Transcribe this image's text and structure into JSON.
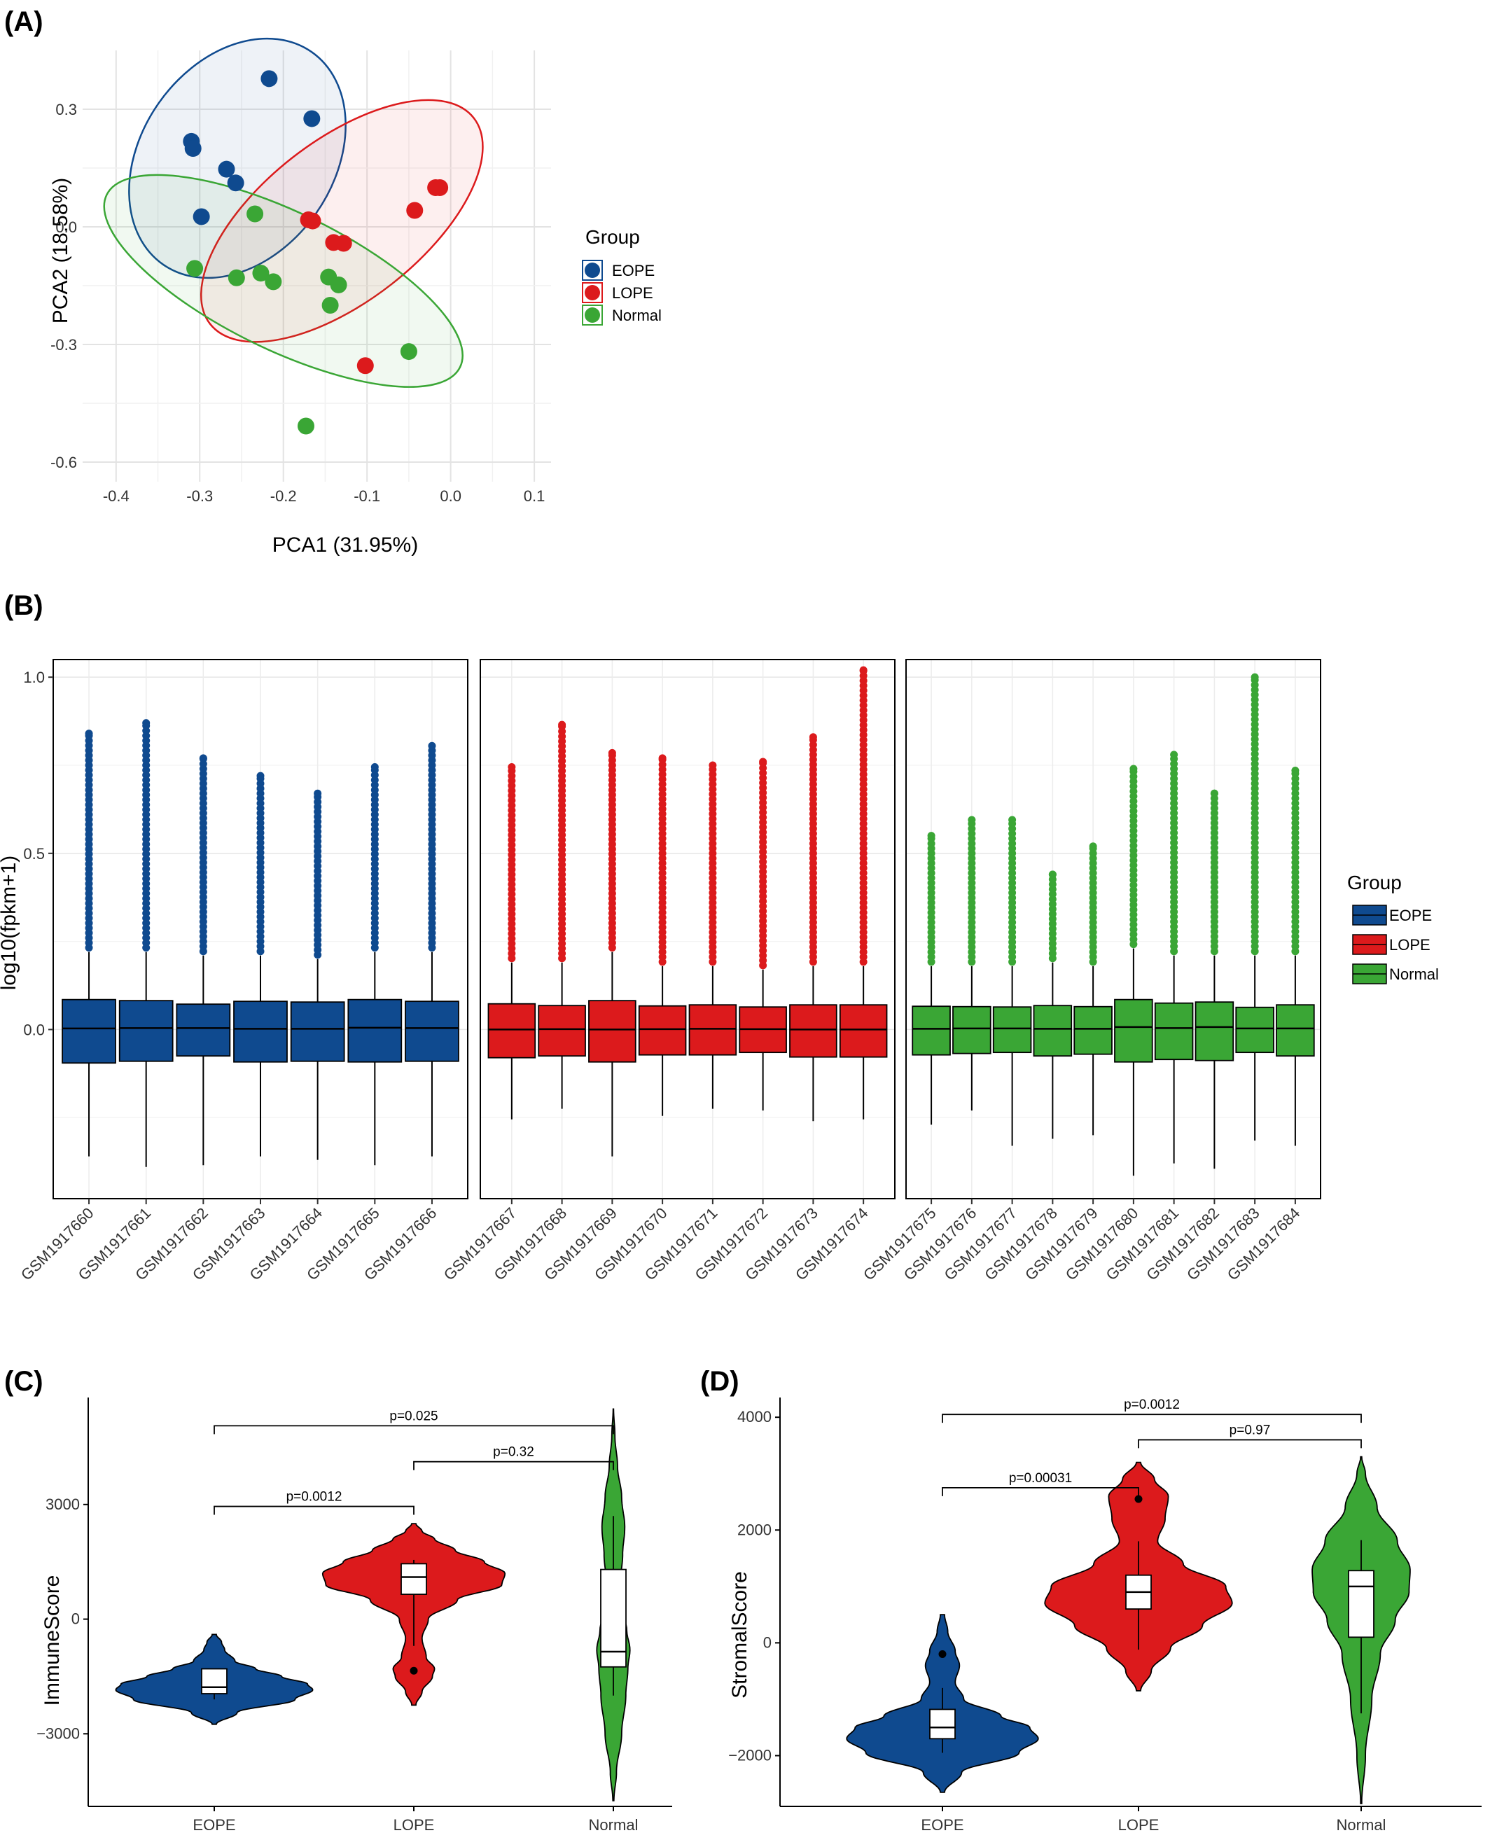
{
  "panels": {
    "a": "(A)",
    "b": "(B)",
    "c": "(C)",
    "d": "(D)"
  },
  "colors": {
    "EOPE": "#0f4a8f",
    "LOPE": "#dc1a1c",
    "Normal": "#3aa635"
  },
  "chart_data": [
    {
      "id": "A",
      "type": "scatter",
      "title": "",
      "xlabel": "PCA1 (31.95%)",
      "ylabel": "PCA2 (18.58%)",
      "xlim": [
        -0.44,
        0.12
      ],
      "ylim": [
        -0.65,
        0.45
      ],
      "xticks": [
        -0.4,
        -0.3,
        -0.2,
        -0.1,
        0.0,
        0.1
      ],
      "xtick_labels": [
        "-0.4",
        "-0.3",
        "-0.2",
        "-0.1",
        "0.0",
        "0.1"
      ],
      "yticks": [
        -0.6,
        -0.3,
        0.0,
        0.3
      ],
      "ytick_labels": [
        "-0.6",
        "-0.3",
        "0.0",
        "0.3"
      ],
      "grid": true,
      "legend": {
        "title": "Group",
        "position": "right",
        "entries": [
          "EOPE",
          "LOPE",
          "Normal"
        ]
      },
      "series": [
        {
          "name": "EOPE",
          "x": [
            -0.217,
            -0.166,
            -0.31,
            -0.308,
            -0.268,
            -0.257,
            -0.298
          ],
          "y": [
            0.378,
            0.276,
            0.218,
            0.2,
            0.147,
            0.112,
            0.026
          ]
        },
        {
          "name": "LOPE",
          "x": [
            -0.018,
            -0.013,
            -0.043,
            -0.17,
            -0.165,
            -0.14,
            -0.128,
            -0.102
          ],
          "y": [
            0.1,
            0.1,
            0.042,
            0.018,
            0.015,
            -0.04,
            -0.042,
            -0.354
          ]
        },
        {
          "name": "Normal",
          "x": [
            -0.234,
            -0.306,
            -0.256,
            -0.227,
            -0.212,
            -0.146,
            -0.134,
            -0.144,
            -0.05,
            -0.173
          ],
          "y": [
            0.033,
            -0.106,
            -0.13,
            -0.118,
            -0.14,
            -0.128,
            -0.148,
            -0.2,
            -0.318,
            -0.508
          ]
        }
      ],
      "ellipses": [
        {
          "group": "EOPE",
          "cx": -0.255,
          "cy": 0.175,
          "rx": 0.155,
          "ry": 0.245,
          "angle_deg": -55
        },
        {
          "group": "LOPE",
          "cx": -0.13,
          "cy": 0.015,
          "rx": 0.2,
          "ry": 0.205,
          "angle_deg": -38
        },
        {
          "group": "Normal",
          "cx": -0.2,
          "cy": -0.138,
          "rx": 0.235,
          "ry": 0.175,
          "angle_deg": 26
        }
      ]
    },
    {
      "id": "B",
      "type": "box",
      "title": "",
      "xlabel": "",
      "ylabel": "log10(fpkm+1)",
      "ylim": [
        -0.48,
        1.05
      ],
      "yticks": [
        0.0,
        0.5,
        1.0
      ],
      "ytick_labels": [
        "0.0",
        "0.5",
        "1.0"
      ],
      "grid": true,
      "legend": {
        "title": "Group",
        "position": "right",
        "entries": [
          "EOPE",
          "LOPE",
          "Normal"
        ]
      },
      "facets": [
        {
          "group": "EOPE",
          "samples": [
            {
              "label": "GSM1917660",
              "q1": -0.095,
              "median": 0.003,
              "q3": 0.085,
              "whisker_low": -0.36,
              "whisker_high": 0.22,
              "outlier_max": 0.84
            },
            {
              "label": "GSM1917661",
              "q1": -0.09,
              "median": 0.004,
              "q3": 0.082,
              "whisker_low": -0.39,
              "whisker_high": 0.22,
              "outlier_max": 0.87
            },
            {
              "label": "GSM1917662",
              "q1": -0.075,
              "median": 0.004,
              "q3": 0.072,
              "whisker_low": -0.385,
              "whisker_high": 0.21,
              "outlier_max": 0.77
            },
            {
              "label": "GSM1917663",
              "q1": -0.092,
              "median": 0.002,
              "q3": 0.08,
              "whisker_low": -0.36,
              "whisker_high": 0.21,
              "outlier_max": 0.72
            },
            {
              "label": "GSM1917664",
              "q1": -0.09,
              "median": 0.002,
              "q3": 0.078,
              "whisker_low": -0.37,
              "whisker_high": 0.2,
              "outlier_max": 0.67
            },
            {
              "label": "GSM1917665",
              "q1": -0.092,
              "median": 0.005,
              "q3": 0.085,
              "whisker_low": -0.385,
              "whisker_high": 0.22,
              "outlier_max": 0.745
            },
            {
              "label": "GSM1917666",
              "q1": -0.09,
              "median": 0.004,
              "q3": 0.08,
              "whisker_low": -0.36,
              "whisker_high": 0.22,
              "outlier_max": 0.805
            }
          ]
        },
        {
          "group": "LOPE",
          "samples": [
            {
              "label": "GSM1917667",
              "q1": -0.08,
              "median": 0.0,
              "q3": 0.073,
              "whisker_low": -0.255,
              "whisker_high": 0.19,
              "outlier_max": 0.745
            },
            {
              "label": "GSM1917668",
              "q1": -0.075,
              "median": 0.001,
              "q3": 0.068,
              "whisker_low": -0.225,
              "whisker_high": 0.19,
              "outlier_max": 0.865
            },
            {
              "label": "GSM1917669",
              "q1": -0.092,
              "median": 0.0,
              "q3": 0.082,
              "whisker_low": -0.36,
              "whisker_high": 0.22,
              "outlier_max": 0.785
            },
            {
              "label": "GSM1917670",
              "q1": -0.072,
              "median": 0.001,
              "q3": 0.067,
              "whisker_low": -0.245,
              "whisker_high": 0.18,
              "outlier_max": 0.77
            },
            {
              "label": "GSM1917671",
              "q1": -0.072,
              "median": 0.002,
              "q3": 0.07,
              "whisker_low": -0.225,
              "whisker_high": 0.18,
              "outlier_max": 0.75
            },
            {
              "label": "GSM1917672",
              "q1": -0.065,
              "median": 0.001,
              "q3": 0.064,
              "whisker_low": -0.23,
              "whisker_high": 0.17,
              "outlier_max": 0.76
            },
            {
              "label": "GSM1917673",
              "q1": -0.078,
              "median": 0.0,
              "q3": 0.07,
              "whisker_low": -0.26,
              "whisker_high": 0.18,
              "outlier_max": 0.83
            },
            {
              "label": "GSM1917674",
              "q1": -0.078,
              "median": 0.0,
              "q3": 0.07,
              "whisker_low": -0.255,
              "whisker_high": 0.18,
              "outlier_max": 1.02
            }
          ]
        },
        {
          "group": "Normal",
          "samples": [
            {
              "label": "GSM1917675",
              "q1": -0.072,
              "median": 0.002,
              "q3": 0.066,
              "whisker_low": -0.27,
              "whisker_high": 0.18,
              "outlier_max": 0.55
            },
            {
              "label": "GSM1917676",
              "q1": -0.068,
              "median": 0.003,
              "q3": 0.065,
              "whisker_low": -0.23,
              "whisker_high": 0.18,
              "outlier_max": 0.595
            },
            {
              "label": "GSM1917677",
              "q1": -0.065,
              "median": 0.003,
              "q3": 0.064,
              "whisker_low": -0.33,
              "whisker_high": 0.18,
              "outlier_max": 0.595
            },
            {
              "label": "GSM1917678",
              "q1": -0.075,
              "median": 0.002,
              "q3": 0.068,
              "whisker_low": -0.31,
              "whisker_high": 0.19,
              "outlier_max": 0.44
            },
            {
              "label": "GSM1917679",
              "q1": -0.07,
              "median": 0.002,
              "q3": 0.065,
              "whisker_low": -0.3,
              "whisker_high": 0.18,
              "outlier_max": 0.52
            },
            {
              "label": "GSM1917680",
              "q1": -0.092,
              "median": 0.007,
              "q3": 0.085,
              "whisker_low": -0.415,
              "whisker_high": 0.23,
              "outlier_max": 0.74
            },
            {
              "label": "GSM1917681",
              "q1": -0.085,
              "median": 0.004,
              "q3": 0.075,
              "whisker_low": -0.38,
              "whisker_high": 0.21,
              "outlier_max": 0.78
            },
            {
              "label": "GSM1917682",
              "q1": -0.088,
              "median": 0.007,
              "q3": 0.078,
              "whisker_low": -0.395,
              "whisker_high": 0.21,
              "outlier_max": 0.67
            },
            {
              "label": "GSM1917683",
              "q1": -0.065,
              "median": 0.003,
              "q3": 0.063,
              "whisker_low": -0.315,
              "whisker_high": 0.21,
              "outlier_max": 1.0
            },
            {
              "label": "GSM1917684",
              "q1": -0.075,
              "median": 0.003,
              "q3": 0.07,
              "whisker_low": -0.33,
              "whisker_high": 0.21,
              "outlier_max": 0.735
            }
          ]
        }
      ]
    },
    {
      "id": "C",
      "type": "violin",
      "title": "",
      "xlabel": "",
      "ylabel": "ImmuneScore",
      "ylim": [
        -4900,
        5800
      ],
      "yticks": [
        -3000,
        0,
        3000
      ],
      "ytick_labels": [
        "−3000",
        "0",
        "3000"
      ],
      "grid": false,
      "categories": [
        "EOPE",
        "LOPE",
        "Normal"
      ],
      "violins": [
        {
          "group": "EOPE",
          "ymin": -2750,
          "ymax": -400,
          "profile": [
            [
              -2750,
              0.02
            ],
            [
              -2450,
              0.22
            ],
            [
              -2100,
              0.78
            ],
            [
              -1850,
              0.95
            ],
            [
              -1700,
              0.9
            ],
            [
              -1500,
              0.65
            ],
            [
              -1300,
              0.4
            ],
            [
              -1100,
              0.2
            ],
            [
              -800,
              0.1
            ],
            [
              -600,
              0.07
            ],
            [
              -400,
              0.02
            ]
          ],
          "box": {
            "q1": -1950,
            "median": -1780,
            "q3": -1300,
            "whisker_low": -2100,
            "whisker_high": -1300
          },
          "outliers": []
        },
        {
          "group": "LOPE",
          "ymin": -2250,
          "ymax": 2500,
          "profile": [
            [
              -2250,
              0.02
            ],
            [
              -1900,
              0.08
            ],
            [
              -1500,
              0.18
            ],
            [
              -1300,
              0.2
            ],
            [
              -1000,
              0.12
            ],
            [
              -500,
              0.08
            ],
            [
              0,
              0.14
            ],
            [
              500,
              0.42
            ],
            [
              900,
              0.85
            ],
            [
              1200,
              0.88
            ],
            [
              1500,
              0.68
            ],
            [
              1800,
              0.4
            ],
            [
              2100,
              0.2
            ],
            [
              2300,
              0.08
            ],
            [
              2500,
              0.02
            ]
          ],
          "box": {
            "q1": 650,
            "median": 1100,
            "q3": 1450,
            "whisker_low": -700,
            "whisker_high": 1550
          },
          "outliers": [
            -1350
          ]
        },
        {
          "group": "Normal",
          "ymin": -4750,
          "ymax": 5500,
          "profile": [
            [
              -4750,
              0.005
            ],
            [
              -4000,
              0.03
            ],
            [
              -3000,
              0.08
            ],
            [
              -2000,
              0.12
            ],
            [
              -1300,
              0.14
            ],
            [
              -800,
              0.16
            ],
            [
              -300,
              0.13
            ],
            [
              300,
              0.08
            ],
            [
              1000,
              0.07
            ],
            [
              1700,
              0.09
            ],
            [
              2400,
              0.11
            ],
            [
              3200,
              0.08
            ],
            [
              4000,
              0.04
            ],
            [
              4800,
              0.015
            ],
            [
              5500,
              0.002
            ]
          ],
          "box": {
            "q1": -1250,
            "median": -850,
            "q3": 1300,
            "whisker_low": -2000,
            "whisker_high": 2700
          },
          "outliers": []
        }
      ],
      "comparisons": [
        {
          "from": "EOPE",
          "to": "LOPE",
          "label": "p=0.0012",
          "y": 2950
        },
        {
          "from": "LOPE",
          "to": "Normal",
          "label": "p=0.32",
          "y": 4120
        },
        {
          "from": "EOPE",
          "to": "Normal",
          "label": "p=0.025",
          "y": 5060
        }
      ]
    },
    {
      "id": "D",
      "type": "violin",
      "title": "",
      "xlabel": "",
      "ylabel": "StromalScore",
      "ylim": [
        -2900,
        4350
      ],
      "yticks": [
        -2000,
        0,
        2000,
        4000
      ],
      "ytick_labels": [
        "−2000",
        "0",
        "2000",
        "4000"
      ],
      "grid": false,
      "categories": [
        "EOPE",
        "LOPE",
        "Normal"
      ],
      "violins": [
        {
          "group": "EOPE",
          "ymin": -2650,
          "ymax": 500,
          "profile": [
            [
              -2650,
              0.02
            ],
            [
              -2300,
              0.18
            ],
            [
              -1950,
              0.72
            ],
            [
              -1700,
              0.9
            ],
            [
              -1500,
              0.82
            ],
            [
              -1300,
              0.55
            ],
            [
              -1000,
              0.2
            ],
            [
              -700,
              0.12
            ],
            [
              -400,
              0.16
            ],
            [
              -150,
              0.12
            ],
            [
              200,
              0.05
            ],
            [
              500,
              0.02
            ]
          ],
          "box": {
            "q1": -1700,
            "median": -1500,
            "q3": -1180,
            "whisker_low": -1950,
            "whisker_high": -800
          },
          "outliers": [
            -200
          ]
        },
        {
          "group": "LOPE",
          "ymin": -850,
          "ymax": 3200,
          "profile": [
            [
              -850,
              0.02
            ],
            [
              -500,
              0.12
            ],
            [
              -100,
              0.3
            ],
            [
              300,
              0.6
            ],
            [
              700,
              0.88
            ],
            [
              1000,
              0.82
            ],
            [
              1400,
              0.42
            ],
            [
              1800,
              0.18
            ],
            [
              2200,
              0.25
            ],
            [
              2600,
              0.28
            ],
            [
              2900,
              0.15
            ],
            [
              3200,
              0.02
            ]
          ],
          "box": {
            "q1": 600,
            "median": 900,
            "q3": 1200,
            "whisker_low": -120,
            "whisker_high": 1800
          },
          "outliers": [
            2550
          ]
        },
        {
          "group": "Normal",
          "ymin": -2850,
          "ymax": 3300,
          "profile": [
            [
              -2850,
              0.005
            ],
            [
              -2000,
              0.04
            ],
            [
              -1000,
              0.1
            ],
            [
              -200,
              0.18
            ],
            [
              400,
              0.32
            ],
            [
              900,
              0.45
            ],
            [
              1300,
              0.46
            ],
            [
              1800,
              0.34
            ],
            [
              2400,
              0.15
            ],
            [
              3000,
              0.04
            ],
            [
              3300,
              0.005
            ]
          ],
          "box": {
            "q1": 100,
            "median": 1000,
            "q3": 1280,
            "whisker_low": -1250,
            "whisker_high": 1820
          },
          "outliers": []
        }
      ],
      "comparisons": [
        {
          "from": "EOPE",
          "to": "LOPE",
          "label": "p=0.00031",
          "y": 2750
        },
        {
          "from": "LOPE",
          "to": "Normal",
          "label": "p=0.97",
          "y": 3600
        },
        {
          "from": "EOPE",
          "to": "Normal",
          "label": "p=0.0012",
          "y": 4050
        }
      ]
    }
  ]
}
